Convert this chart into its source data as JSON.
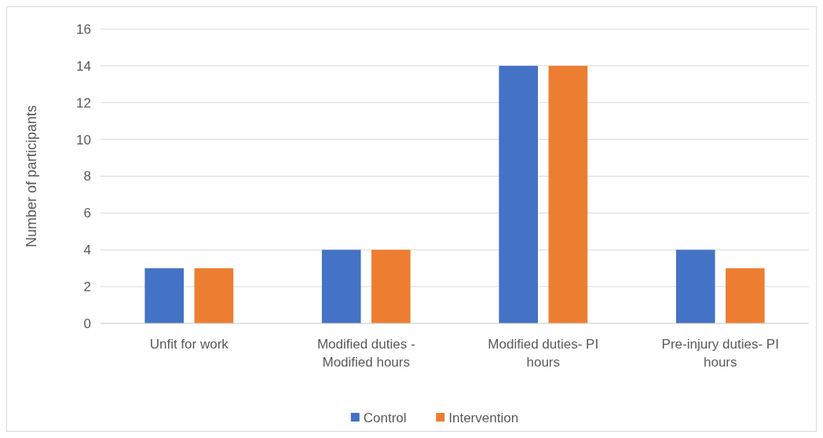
{
  "chart_data": {
    "type": "bar",
    "ylabel": "Number of participants",
    "categories": [
      "Unfit for work",
      "Modified duties - Modified hours",
      "Modified duties- PI hours",
      "Pre-injury duties- PI hours"
    ],
    "series": [
      {
        "name": "Control",
        "color": "#4472c4",
        "values": [
          3,
          4,
          14,
          4
        ]
      },
      {
        "name": "Intervention",
        "color": "#ed7d31",
        "values": [
          3,
          4,
          14,
          3
        ]
      }
    ],
    "ylim": [
      0,
      16
    ],
    "yticks": [
      0,
      2,
      4,
      6,
      8,
      10,
      12,
      14,
      16
    ],
    "grid": "y",
    "legend": "bottom"
  }
}
